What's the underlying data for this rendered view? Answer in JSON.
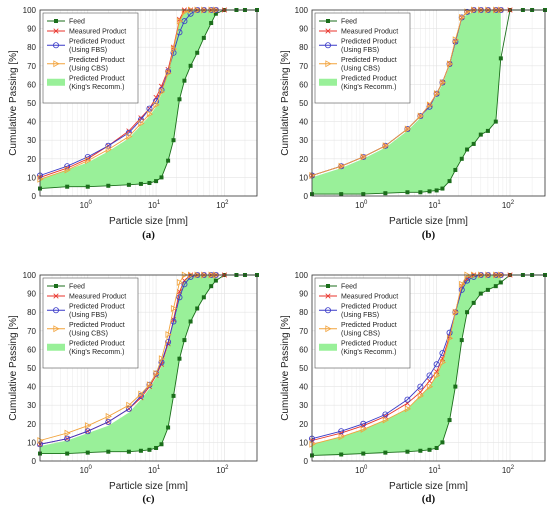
{
  "chart_data": [
    {
      "type": "line",
      "panel_label": "(a)",
      "xlabel": "Particle size [mm]",
      "ylabel": "Cumulative Passing [%]",
      "xscale": "log",
      "xlim": [
        0.2,
        300
      ],
      "ylim": [
        0,
        100
      ],
      "xticks": [
        "10^0",
        "10^1",
        "10^2"
      ],
      "yticks": [
        0,
        10,
        20,
        30,
        40,
        50,
        60,
        70,
        80,
        90,
        100
      ],
      "grid": true,
      "legend_position": "top-left",
      "series": [
        {
          "name": "Feed",
          "x": [
            0.2,
            0.5,
            1,
            2,
            4,
            6,
            8,
            10,
            12,
            15,
            18,
            22,
            26,
            32,
            40,
            50,
            64,
            75,
            100,
            150,
            200,
            300
          ],
          "y": [
            4,
            5,
            5,
            5.5,
            6,
            6.5,
            7,
            8,
            10,
            19,
            30,
            52,
            62,
            70,
            77,
            85,
            93,
            98,
            100,
            100,
            100,
            100
          ]
        },
        {
          "name": "Measured Product",
          "x": [
            0.2,
            0.5,
            1,
            2,
            4,
            6,
            8,
            10,
            12,
            15,
            18,
            22,
            26,
            32,
            40,
            50,
            64,
            75,
            100
          ],
          "y": [
            10,
            15,
            20,
            27,
            35,
            42,
            47,
            53,
            59,
            68,
            80,
            95,
            100,
            100,
            100,
            100,
            100,
            100,
            100
          ]
        },
        {
          "name": "Predicted Product (Using FBS)",
          "x": [
            0.2,
            0.5,
            1,
            2,
            4,
            6,
            8,
            10,
            12,
            15,
            18,
            22,
            26,
            32,
            40,
            50,
            64,
            75
          ],
          "y": [
            11,
            16,
            21,
            27,
            34,
            41,
            47,
            51,
            57,
            67,
            77,
            88,
            94,
            98,
            100,
            100,
            100,
            100
          ]
        },
        {
          "name": "Predicted Product (Using CBS)",
          "x": [
            0.2,
            0.5,
            1,
            2,
            4,
            6,
            8,
            10,
            12,
            15,
            18,
            22,
            26,
            32,
            40,
            50,
            64,
            75
          ],
          "y": [
            9,
            14,
            19,
            25,
            32,
            39,
            44,
            49,
            56,
            66,
            79,
            94,
            99,
            100,
            100,
            100,
            100,
            100
          ]
        },
        {
          "name": "Predicted Product (King's Recomm.)",
          "x": [
            0.2,
            0.5,
            1,
            2,
            4,
            6,
            8,
            10,
            12,
            15,
            18,
            22,
            26,
            32,
            40,
            50,
            64,
            75
          ],
          "y_low": [
            4,
            5,
            5,
            5.5,
            6,
            6.5,
            7,
            8,
            10,
            19,
            30,
            52,
            62,
            70,
            77,
            85,
            93,
            98
          ],
          "y_high": [
            9,
            14,
            18,
            24,
            31,
            38,
            43,
            48,
            55,
            66,
            80,
            95,
            99,
            100,
            100,
            100,
            100,
            100
          ]
        }
      ]
    },
    {
      "type": "line",
      "panel_label": "(b)",
      "xlabel": "Particle size [mm]",
      "ylabel": "Cumulative Passing [%]",
      "xscale": "log",
      "xlim": [
        0.2,
        300
      ],
      "ylim": [
        0,
        100
      ],
      "xticks": [
        "10^0",
        "10^1",
        "10^2"
      ],
      "yticks": [
        0,
        10,
        20,
        30,
        40,
        50,
        60,
        70,
        80,
        90,
        100
      ],
      "grid": true,
      "legend_position": "top-left",
      "series": [
        {
          "name": "Feed",
          "x": [
            0.2,
            0.5,
            1,
            2,
            4,
            6,
            8,
            10,
            12,
            15,
            18,
            22,
            26,
            32,
            40,
            50,
            64,
            75,
            100,
            150,
            200,
            300
          ],
          "y": [
            1,
            1,
            1,
            1.5,
            2,
            2,
            2.5,
            3,
            4,
            8,
            14,
            20,
            25,
            28,
            33,
            35,
            40,
            74,
            100,
            100,
            100,
            100
          ]
        },
        {
          "name": "Measured Product",
          "x": [
            0.2,
            0.5,
            1,
            2,
            4,
            6,
            8,
            10,
            12,
            15,
            18,
            22,
            26,
            32,
            40,
            50,
            64,
            75,
            100
          ],
          "y": [
            11,
            16,
            21,
            27,
            36,
            43,
            49,
            55,
            61,
            71,
            83,
            96,
            99,
            100,
            100,
            100,
            100,
            100,
            100
          ]
        },
        {
          "name": "Predicted Product (Using FBS)",
          "x": [
            0.2,
            0.5,
            1,
            2,
            4,
            6,
            8,
            10,
            12,
            15,
            18,
            22,
            26,
            32,
            40,
            50,
            64,
            75
          ],
          "y": [
            11,
            16,
            21,
            27,
            36,
            43,
            48,
            55,
            61,
            71,
            83,
            96,
            99,
            100,
            100,
            100,
            100,
            100
          ]
        },
        {
          "name": "Predicted Product (Using CBS)",
          "x": [
            0.2,
            0.5,
            1,
            2,
            4,
            6,
            8,
            10,
            12,
            15,
            18,
            22,
            26,
            32,
            40,
            50,
            64,
            75
          ],
          "y": [
            11,
            16,
            21,
            27,
            36,
            43,
            49,
            55,
            61,
            71,
            84,
            96,
            99,
            100,
            100,
            100,
            100,
            100
          ]
        },
        {
          "name": "Predicted Product (King's Recomm.)",
          "x": [
            0.2,
            0.5,
            1,
            2,
            4,
            6,
            8,
            10,
            12,
            15,
            18,
            22,
            26,
            32,
            40,
            50,
            64,
            75
          ],
          "y_low": [
            1,
            1,
            1,
            1.5,
            2,
            2,
            2.5,
            3,
            4,
            8,
            14,
            20,
            25,
            28,
            33,
            35,
            40,
            74
          ],
          "y_high": [
            10,
            15,
            20,
            26,
            35,
            42,
            48,
            54,
            60,
            70,
            82,
            95,
            98,
            99,
            100,
            100,
            100,
            100
          ]
        }
      ]
    },
    {
      "type": "line",
      "panel_label": "(c)",
      "xlabel": "Particle size [mm]",
      "ylabel": "Cumulative Passing [%]",
      "xscale": "log",
      "xlim": [
        0.2,
        300
      ],
      "ylim": [
        0,
        100
      ],
      "xticks": [
        "10^0",
        "10^1",
        "10^2"
      ],
      "yticks": [
        0,
        10,
        20,
        30,
        40,
        50,
        60,
        70,
        80,
        90,
        100
      ],
      "grid": true,
      "legend_position": "top-left",
      "series": [
        {
          "name": "Feed",
          "x": [
            0.2,
            0.5,
            1,
            2,
            4,
            6,
            8,
            10,
            12,
            15,
            18,
            22,
            26,
            32,
            40,
            50,
            64,
            75,
            100,
            150,
            200,
            300
          ],
          "y": [
            4,
            4,
            4.5,
            5,
            5,
            5.5,
            6,
            7,
            9,
            18,
            35,
            55,
            65,
            75,
            82,
            88,
            94,
            97,
            100,
            100,
            100,
            100
          ]
        },
        {
          "name": "Measured Product",
          "x": [
            0.2,
            0.5,
            1,
            2,
            4,
            6,
            8,
            10,
            12,
            15,
            18,
            22,
            26,
            32,
            40,
            50,
            64,
            75,
            100
          ],
          "y": [
            9,
            12,
            16,
            21,
            28,
            34,
            40,
            46,
            52,
            63,
            76,
            91,
            97,
            100,
            100,
            100,
            100,
            100,
            100
          ]
        },
        {
          "name": "Predicted Product (Using FBS)",
          "x": [
            0.2,
            0.5,
            1,
            2,
            4,
            6,
            8,
            10,
            12,
            15,
            18,
            22,
            26,
            32,
            40,
            50,
            64,
            75
          ],
          "y": [
            9,
            12,
            16,
            21,
            28,
            35,
            41,
            47,
            53,
            64,
            75,
            88,
            95,
            99,
            100,
            100,
            100,
            100
          ]
        },
        {
          "name": "Predicted Product (Using CBS)",
          "x": [
            0.2,
            0.5,
            1,
            2,
            4,
            6,
            8,
            10,
            12,
            15,
            18,
            22,
            26,
            32,
            40,
            50,
            64,
            75
          ],
          "y": [
            11,
            15,
            19,
            24,
            30,
            36,
            41,
            47,
            55,
            68,
            82,
            96,
            100,
            100,
            100,
            100,
            100,
            100
          ]
        },
        {
          "name": "Predicted Product (King's Recomm.)",
          "x": [
            0.2,
            0.5,
            1,
            2,
            4,
            6,
            8,
            10,
            12,
            15,
            18,
            22,
            26,
            32,
            40,
            50,
            64,
            75
          ],
          "y_low": [
            4,
            4,
            4.5,
            5,
            5,
            5.5,
            6,
            7,
            9,
            18,
            35,
            55,
            65,
            75,
            82,
            88,
            94,
            97
          ],
          "y_high": [
            8,
            11,
            15,
            19,
            26,
            33,
            39,
            45,
            51,
            62,
            75,
            90,
            97,
            100,
            100,
            100,
            100,
            100
          ]
        }
      ]
    },
    {
      "type": "line",
      "panel_label": "(d)",
      "xlabel": "Particle size [mm]",
      "ylabel": "Cumulative Passing [%]",
      "xscale": "log",
      "xlim": [
        0.2,
        300
      ],
      "ylim": [
        0,
        100
      ],
      "xticks": [
        "10^0",
        "10^1",
        "10^2"
      ],
      "yticks": [
        0,
        10,
        20,
        30,
        40,
        50,
        60,
        70,
        80,
        90,
        100
      ],
      "grid": true,
      "legend_position": "top-left",
      "series": [
        {
          "name": "Feed",
          "x": [
            0.2,
            0.5,
            1,
            2,
            4,
            6,
            8,
            10,
            12,
            15,
            18,
            22,
            26,
            32,
            40,
            50,
            64,
            75,
            100,
            150,
            200,
            300
          ],
          "y": [
            3,
            3.5,
            4,
            4.5,
            5,
            5.5,
            6,
            7,
            10,
            22,
            40,
            65,
            80,
            85,
            90,
            92,
            94,
            96,
            100,
            100,
            100,
            100
          ]
        },
        {
          "name": "Measured Product",
          "x": [
            0.2,
            0.5,
            1,
            2,
            4,
            6,
            8,
            10,
            12,
            15,
            18,
            22,
            26,
            32,
            40,
            50,
            64,
            75,
            100
          ],
          "y": [
            11,
            15,
            19,
            24,
            31,
            37,
            43,
            48,
            55,
            67,
            80,
            94,
            98,
            100,
            100,
            100,
            100,
            100,
            100
          ]
        },
        {
          "name": "Predicted Product (Using FBS)",
          "x": [
            0.2,
            0.5,
            1,
            2,
            4,
            6,
            8,
            10,
            12,
            15,
            18,
            22,
            26,
            32,
            40,
            50,
            64,
            75
          ],
          "y": [
            12,
            16,
            20,
            25,
            33,
            40,
            46,
            52,
            58,
            69,
            80,
            92,
            97,
            99,
            100,
            100,
            100,
            100
          ]
        },
        {
          "name": "Predicted Product (Using CBS)",
          "x": [
            0.2,
            0.5,
            1,
            2,
            4,
            6,
            8,
            10,
            12,
            15,
            18,
            22,
            26,
            32,
            40,
            50,
            64,
            75
          ],
          "y": [
            9,
            13,
            17,
            22,
            28,
            35,
            40,
            46,
            53,
            66,
            80,
            95,
            100,
            100,
            100,
            100,
            100,
            100
          ]
        },
        {
          "name": "Predicted Product (King's Recomm.)",
          "x": [
            0.2,
            0.5,
            1,
            2,
            4,
            6,
            8,
            10,
            12,
            15,
            18,
            22,
            26,
            32,
            40,
            50,
            64,
            75
          ],
          "y_low": [
            3,
            3.5,
            4,
            4.5,
            5,
            5.5,
            6,
            7,
            10,
            22,
            40,
            65,
            80,
            85,
            90,
            92,
            94,
            96
          ],
          "y_high": [
            9,
            13,
            17,
            22,
            28,
            35,
            40,
            46,
            53,
            66,
            80,
            95,
            100,
            100,
            100,
            100,
            100,
            100
          ]
        }
      ]
    }
  ],
  "legend": {
    "items": [
      {
        "label_lines": [
          "Feed"
        ],
        "kind": "feed"
      },
      {
        "label_lines": [
          "Measured Product"
        ],
        "kind": "measured"
      },
      {
        "label_lines": [
          "Predicted Product",
          "(Using FBS)"
        ],
        "kind": "fbs"
      },
      {
        "label_lines": [
          "Predicted Product",
          "(Using CBS)"
        ],
        "kind": "cbs"
      },
      {
        "label_lines": [
          "Predicted Product",
          "(King's Recomm.)"
        ],
        "kind": "king"
      }
    ]
  },
  "colors": {
    "feed": "#1b6e1b",
    "measured": "#e8332b",
    "fbs": "#3a3ac8",
    "cbs": "#f2a33c",
    "king_fill": "#99f099",
    "grid": "#e4e4e4"
  }
}
